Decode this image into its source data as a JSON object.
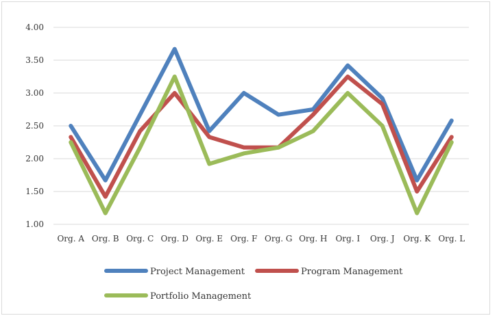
{
  "chart_data": {
    "type": "line",
    "categories": [
      "Org. A",
      "Org. B",
      "Org. C",
      "Org. D",
      "Org. E",
      "Org. F",
      "Org. G",
      "Org. H",
      "Org. I",
      "Org. J",
      "Org. K",
      "Org. L"
    ],
    "series": [
      {
        "name": "Project Management",
        "color": "#4f81bd",
        "values": [
          2.5,
          1.67,
          2.67,
          3.67,
          2.42,
          3.0,
          2.67,
          2.75,
          3.42,
          2.92,
          1.67,
          2.58
        ]
      },
      {
        "name": "Program Management",
        "color": "#c0504d",
        "values": [
          2.33,
          1.42,
          2.42,
          3.0,
          2.33,
          2.17,
          2.17,
          2.67,
          3.25,
          2.83,
          1.5,
          2.33
        ]
      },
      {
        "name": "Portfolio Management",
        "color": "#9bbb59",
        "values": [
          2.25,
          1.17,
          2.17,
          3.25,
          1.92,
          2.08,
          2.17,
          2.42,
          3.0,
          2.5,
          1.17,
          2.25
        ]
      }
    ],
    "yticks": [
      "1.00",
      "1.50",
      "2.00",
      "2.50",
      "3.00",
      "3.50",
      "4.00"
    ],
    "ylim": [
      1.0,
      4.0
    ],
    "grid": true,
    "legend_position": "bottom",
    "title": "",
    "xlabel": "",
    "ylabel": ""
  }
}
